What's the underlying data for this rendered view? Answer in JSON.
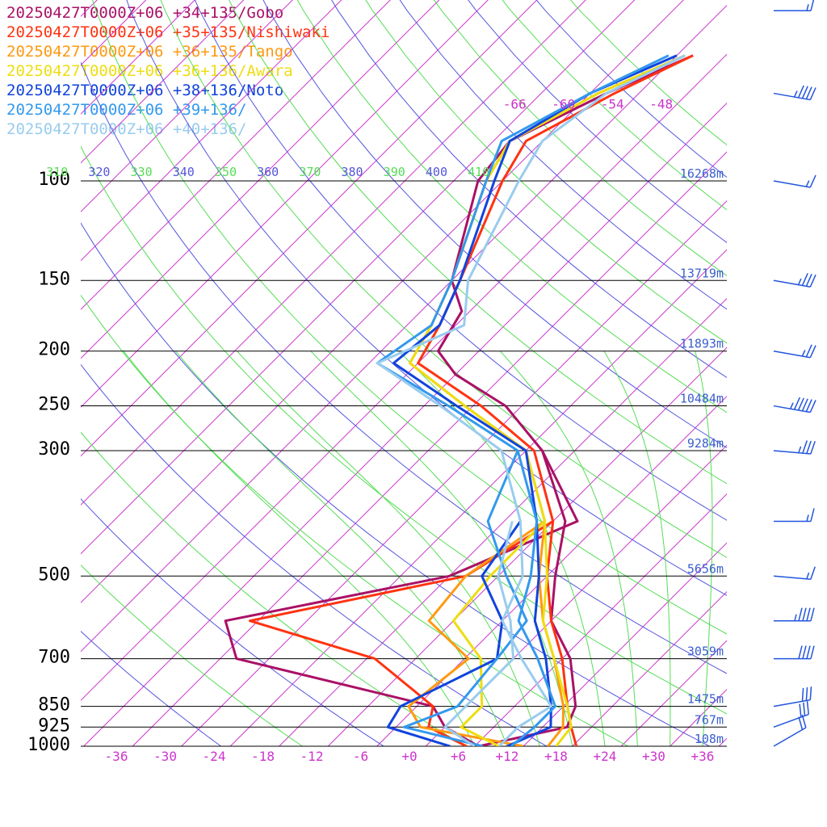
{
  "chart_data": {
    "type": "line",
    "chart_kind": "skew-T log-P sounding",
    "y_axis": {
      "scale": "log",
      "range_hPa": [
        1000,
        70
      ],
      "pressure_levels": [
        {
          "label": "100",
          "p": 100
        },
        {
          "label": "150",
          "p": 150
        },
        {
          "label": "200",
          "p": 200
        },
        {
          "label": "250",
          "p": 250
        },
        {
          "label": "300",
          "p": 300
        },
        {
          "label": "500",
          "p": 500
        },
        {
          "label": "700",
          "p": 700
        },
        {
          "label": "850",
          "p": 850
        },
        {
          "label": "925",
          "p": 925
        },
        {
          "label": "1000",
          "p": 1000
        }
      ],
      "heights": [
        {
          "p": 100,
          "label": "16268m"
        },
        {
          "p": 150,
          "label": "13719m"
        },
        {
          "p": 200,
          "label": "11893m"
        },
        {
          "p": 250,
          "label": "10484m"
        },
        {
          "p": 300,
          "label": "9284m"
        },
        {
          "p": 500,
          "label": "5656m"
        },
        {
          "p": 700,
          "label": "3059m"
        },
        {
          "p": 850,
          "label": "1475m"
        },
        {
          "p": 925,
          "label": "767m"
        },
        {
          "p": 1000,
          "label": "108m"
        }
      ]
    },
    "x_axis": {
      "range_degC": [
        -40,
        40
      ],
      "ticks": [
        "-36",
        "-30",
        "-24",
        "-18",
        "-12",
        "-6",
        "+0",
        "+6",
        "+12",
        "+18",
        "+24",
        "+30",
        "+36"
      ],
      "tick_values": [
        -36,
        -30,
        -24,
        -18,
        -12,
        -6,
        0,
        6,
        12,
        18,
        24,
        30,
        36
      ]
    },
    "isotherm_labels_top": [
      {
        "label": "-66",
        "value": -66
      },
      {
        "label": "-60",
        "value": -60
      },
      {
        "label": "-54",
        "value": -54
      },
      {
        "label": "-48",
        "value": -48
      }
    ],
    "theta_labels": [
      {
        "label": "310",
        "theta": 310,
        "color": "#55dd55"
      },
      {
        "label": "320",
        "theta": 320,
        "color": "#5555dd"
      },
      {
        "label": "330",
        "theta": 330,
        "color": "#55dd55"
      },
      {
        "label": "340",
        "theta": 340,
        "color": "#5555dd"
      },
      {
        "label": "350",
        "theta": 350,
        "color": "#55dd55"
      },
      {
        "label": "360",
        "theta": 360,
        "color": "#5555dd"
      },
      {
        "label": "370",
        "theta": 370,
        "color": "#55dd55"
      },
      {
        "label": "380",
        "theta": 380,
        "color": "#5555dd"
      },
      {
        "label": "390",
        "theta": 390,
        "color": "#55dd55"
      },
      {
        "label": "400",
        "theta": 400,
        "color": "#5555dd"
      },
      {
        "label": "410",
        "theta": 410,
        "color": "#55dd55"
      }
    ],
    "series": [
      {
        "name": "20250427T0000Z+06 +34+135/Gobo",
        "color": "#aa1166",
        "temperature": [
          [
            1000,
            8.5
          ],
          [
            925,
            17
          ],
          [
            850,
            15.5
          ],
          [
            700,
            9
          ],
          [
            600,
            2
          ],
          [
            500,
            -3
          ],
          [
            400,
            -8.5
          ],
          [
            300,
            -20
          ],
          [
            250,
            -30
          ],
          [
            220,
            -40
          ],
          [
            200,
            -45
          ],
          [
            170,
            -47
          ],
          [
            150,
            -52
          ],
          [
            100,
            -61
          ],
          [
            85,
            -62
          ],
          [
            70,
            -56
          ],
          [
            60,
            -50
          ]
        ],
        "dewpoint": [
          [
            1000,
            8.5
          ],
          [
            925,
            2
          ],
          [
            850,
            -2
          ],
          [
            700,
            -32
          ],
          [
            600,
            -38
          ],
          [
            500,
            -16
          ],
          [
            400,
            -7
          ],
          [
            300,
            -20
          ]
        ]
      },
      {
        "name": "20250427T0000Z+06 +35+135/Nishiwaki",
        "color": "#ff3311",
        "temperature": [
          [
            1000,
            20.5
          ],
          [
            925,
            17.5
          ],
          [
            850,
            14.5
          ],
          [
            700,
            8
          ],
          [
            600,
            2
          ],
          [
            500,
            -4
          ],
          [
            400,
            -10
          ],
          [
            300,
            -21
          ],
          [
            250,
            -33
          ],
          [
            210,
            -46
          ],
          [
            180,
            -48
          ],
          [
            150,
            -51
          ],
          [
            100,
            -58
          ],
          [
            85,
            -60
          ],
          [
            70,
            -55
          ],
          [
            60,
            -50
          ]
        ],
        "dewpoint": [
          [
            1000,
            7
          ],
          [
            925,
            0
          ],
          [
            850,
            -2
          ],
          [
            700,
            -15
          ],
          [
            600,
            -35
          ],
          [
            500,
            -14
          ],
          [
            400,
            -10
          ]
        ]
      },
      {
        "name": "20250427T0000Z+06 +36+135/Tango",
        "color": "#ff9911",
        "temperature": [
          [
            1000,
            17
          ],
          [
            925,
            16.5
          ],
          [
            850,
            14
          ],
          [
            700,
            7
          ],
          [
            600,
            1
          ],
          [
            500,
            -5
          ],
          [
            400,
            -11
          ],
          [
            300,
            -22
          ],
          [
            250,
            -35
          ],
          [
            210,
            -47
          ],
          [
            180,
            -49
          ],
          [
            150,
            -52
          ],
          [
            100,
            -60
          ],
          [
            85,
            -62
          ],
          [
            70,
            -57
          ],
          [
            60,
            -51
          ]
        ],
        "dewpoint": [
          [
            1000,
            14
          ],
          [
            925,
            -1
          ],
          [
            850,
            -5
          ],
          [
            700,
            -3.5
          ],
          [
            600,
            -13
          ],
          [
            500,
            -14
          ],
          [
            400,
            -11
          ]
        ]
      },
      {
        "name": "20250427T0000Z+06 +36+136/Awara",
        "color": "#eedd11",
        "temperature": [
          [
            1000,
            18
          ],
          [
            925,
            17.5
          ],
          [
            850,
            14.5
          ],
          [
            700,
            7
          ],
          [
            600,
            1
          ],
          [
            500,
            -4
          ],
          [
            400,
            -11
          ],
          [
            300,
            -22
          ],
          [
            250,
            -35
          ],
          [
            210,
            -47
          ],
          [
            180,
            -49
          ],
          [
            150,
            -52
          ],
          [
            100,
            -60
          ],
          [
            85,
            -62
          ],
          [
            70,
            -57
          ],
          [
            60,
            -51
          ]
        ],
        "dewpoint": [
          [
            1000,
            11
          ],
          [
            925,
            4
          ],
          [
            850,
            4
          ],
          [
            700,
            -2
          ],
          [
            600,
            -10
          ],
          [
            500,
            -11
          ],
          [
            400,
            -11
          ]
        ]
      },
      {
        "name": "20250427T0000Z+06 +38+136/Noto",
        "color": "#1144dd",
        "temperature": [
          [
            1000,
            12
          ],
          [
            925,
            15
          ],
          [
            850,
            12.5
          ],
          [
            700,
            6
          ],
          [
            600,
            0
          ],
          [
            500,
            -5
          ],
          [
            400,
            -12
          ],
          [
            300,
            -22
          ],
          [
            250,
            -36
          ],
          [
            210,
            -49
          ],
          [
            180,
            -48
          ],
          [
            150,
            -51
          ],
          [
            100,
            -59
          ],
          [
            85,
            -62
          ],
          [
            70,
            -58
          ],
          [
            60,
            -52
          ]
        ],
        "dewpoint": [
          [
            1000,
            5
          ],
          [
            925,
            -5
          ],
          [
            850,
            -6
          ],
          [
            700,
            0
          ],
          [
            600,
            -4
          ],
          [
            500,
            -12
          ],
          [
            400,
            -14
          ]
        ]
      },
      {
        "name": "20250427T0000Z+06 +39+136/",
        "color": "#3399ee",
        "temperature": [
          [
            1000,
            12.5
          ],
          [
            925,
            13
          ],
          [
            850,
            13
          ],
          [
            700,
            5
          ],
          [
            600,
            -2
          ],
          [
            500,
            -6
          ],
          [
            400,
            -12
          ],
          [
            300,
            -23
          ],
          [
            250,
            -37
          ],
          [
            210,
            -51
          ],
          [
            180,
            -49
          ],
          [
            150,
            -52
          ],
          [
            100,
            -60
          ],
          [
            85,
            -63
          ],
          [
            70,
            -58
          ],
          [
            60,
            -53
          ]
        ],
        "dewpoint": [
          [
            1000,
            9
          ],
          [
            925,
            -3
          ],
          [
            850,
            1
          ],
          [
            700,
            0
          ],
          [
            600,
            -1
          ],
          [
            500,
            -9
          ],
          [
            400,
            -18
          ],
          [
            300,
            -23
          ]
        ]
      },
      {
        "name": "20250427T0000Z+06 +40+136/",
        "color": "#99ccee",
        "temperature": [
          [
            1000,
            11
          ],
          [
            925,
            11
          ],
          [
            850,
            12.5
          ],
          [
            700,
            3
          ],
          [
            600,
            -4
          ],
          [
            500,
            -7
          ],
          [
            400,
            -14
          ],
          [
            300,
            -25
          ],
          [
            250,
            -38
          ],
          [
            210,
            -51
          ],
          [
            180,
            -45
          ],
          [
            150,
            -50
          ],
          [
            100,
            -56
          ],
          [
            85,
            -58
          ],
          [
            70,
            -56
          ],
          [
            60,
            -51
          ]
        ],
        "dewpoint": [
          [
            1000,
            8
          ],
          [
            925,
            2
          ],
          [
            850,
            2
          ],
          [
            700,
            2
          ],
          [
            600,
            -3
          ],
          [
            500,
            -10
          ],
          [
            400,
            -15
          ]
        ]
      }
    ],
    "wind_barbs": [
      {
        "p": 1000,
        "speed_kt": 20,
        "dir_deg": 240
      },
      {
        "p": 925,
        "speed_kt": 30,
        "dir_deg": 250
      },
      {
        "p": 850,
        "speed_kt": 30,
        "dir_deg": 260
      },
      {
        "p": 700,
        "speed_kt": 40,
        "dir_deg": 270
      },
      {
        "p": 600,
        "speed_kt": 45,
        "dir_deg": 270
      },
      {
        "p": 500,
        "speed_kt": 15,
        "dir_deg": 275
      },
      {
        "p": 400,
        "speed_kt": 15,
        "dir_deg": 270
      },
      {
        "p": 300,
        "speed_kt": 35,
        "dir_deg": 275
      },
      {
        "p": 250,
        "speed_kt": 55,
        "dir_deg": 280
      },
      {
        "p": 200,
        "speed_kt": 25,
        "dir_deg": 280
      },
      {
        "p": 150,
        "speed_kt": 35,
        "dir_deg": 280
      },
      {
        "p": 100,
        "speed_kt": 15,
        "dir_deg": 280
      },
      {
        "p": 70,
        "speed_kt": 45,
        "dir_deg": 280
      },
      {
        "p": 50,
        "speed_kt": 15,
        "dir_deg": 270
      }
    ],
    "colors": {
      "isotherm": "#cc33cc",
      "dry_adiabat_a": "#5555dd",
      "dry_adiabat_b": "#55dd55",
      "moist_adiabat": "#55dd55",
      "isobar": "#000000",
      "height_label": "#3a5fcd",
      "wind_barb": "#2255dd"
    },
    "grid": true,
    "legend_position": "top-left"
  }
}
